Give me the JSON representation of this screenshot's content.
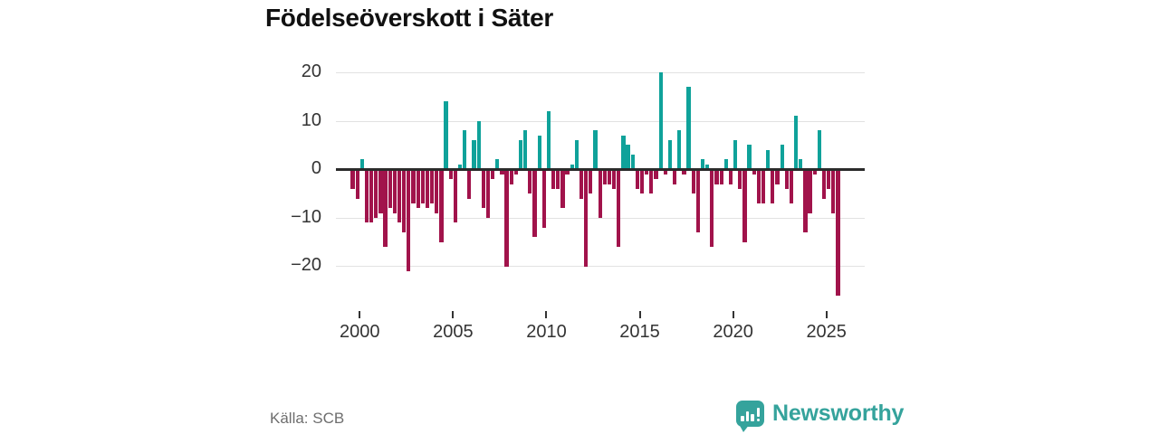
{
  "title": "Födelseöverskott i Säter",
  "source": "Källa: SCB",
  "logo": {
    "text": "Newsworthy"
  },
  "colors": {
    "positive": "#0FA29A",
    "negative": "#A1134B",
    "logo_teal": "#35A39C",
    "axis_text": "#333333",
    "gridline": "#e2e2e2",
    "zero_line": "#2b2b2b"
  },
  "chart_data": {
    "type": "bar",
    "title": "Födelseöverskott i Säter",
    "frequency": "quarterly",
    "start": "1999 Q3",
    "end": "2025 Q3",
    "y_ticks": [
      20,
      10,
      0,
      -10,
      -20
    ],
    "ylim": [
      -28,
      22
    ],
    "x_tick_years": [
      "2000",
      "2005",
      "2010",
      "2015",
      "2020",
      "2025"
    ],
    "grid": "horizontal",
    "legend": "none",
    "years": [
      {
        "year": 1999,
        "start_quarter": 3,
        "values": [
          -4,
          -6
        ]
      },
      {
        "year": 2000,
        "values": [
          2,
          -11,
          -11,
          -10
        ]
      },
      {
        "year": 2001,
        "values": [
          -9,
          -16,
          -8,
          -9
        ]
      },
      {
        "year": 2002,
        "values": [
          -11,
          -13,
          -21,
          -7
        ]
      },
      {
        "year": 2003,
        "values": [
          -8,
          -7,
          -8,
          -7
        ]
      },
      {
        "year": 2004,
        "values": [
          -9,
          -15,
          14,
          -2
        ]
      },
      {
        "year": 2005,
        "values": [
          -11,
          1,
          8,
          -6
        ]
      },
      {
        "year": 2006,
        "values": [
          6,
          10,
          -8,
          -10
        ]
      },
      {
        "year": 2007,
        "values": [
          -2,
          2,
          -1,
          -20
        ]
      },
      {
        "year": 2008,
        "values": [
          -3,
          -1,
          6,
          8
        ]
      },
      {
        "year": 2009,
        "values": [
          -5,
          -14,
          7,
          -12
        ]
      },
      {
        "year": 2010,
        "values": [
          12,
          -4,
          -4,
          -8
        ]
      },
      {
        "year": 2011,
        "values": [
          -1,
          1,
          6,
          -6
        ]
      },
      {
        "year": 2012,
        "values": [
          -20,
          -5,
          8,
          -10
        ]
      },
      {
        "year": 2013,
        "values": [
          -3,
          -3,
          -4,
          -16
        ]
      },
      {
        "year": 2014,
        "values": [
          7,
          5,
          3,
          -4
        ]
      },
      {
        "year": 2015,
        "values": [
          -5,
          -1,
          -5,
          -2
        ]
      },
      {
        "year": 2016,
        "values": [
          20,
          -1,
          6,
          -3
        ]
      },
      {
        "year": 2017,
        "values": [
          8,
          -1,
          17,
          -5
        ]
      },
      {
        "year": 2018,
        "values": [
          -13,
          2,
          1,
          -16
        ]
      },
      {
        "year": 2019,
        "values": [
          -3,
          -3,
          2,
          -3
        ]
      },
      {
        "year": 2020,
        "values": [
          6,
          -4,
          -15,
          5
        ]
      },
      {
        "year": 2021,
        "values": [
          -1,
          -7,
          -7,
          4
        ]
      },
      {
        "year": 2022,
        "values": [
          -7,
          -3,
          5,
          -4
        ]
      },
      {
        "year": 2023,
        "values": [
          -7,
          11,
          2,
          -13
        ]
      },
      {
        "year": 2024,
        "values": [
          -9,
          -1,
          8,
          -6
        ]
      },
      {
        "year": 2025,
        "values": [
          -4,
          -9,
          -26
        ]
      }
    ]
  }
}
